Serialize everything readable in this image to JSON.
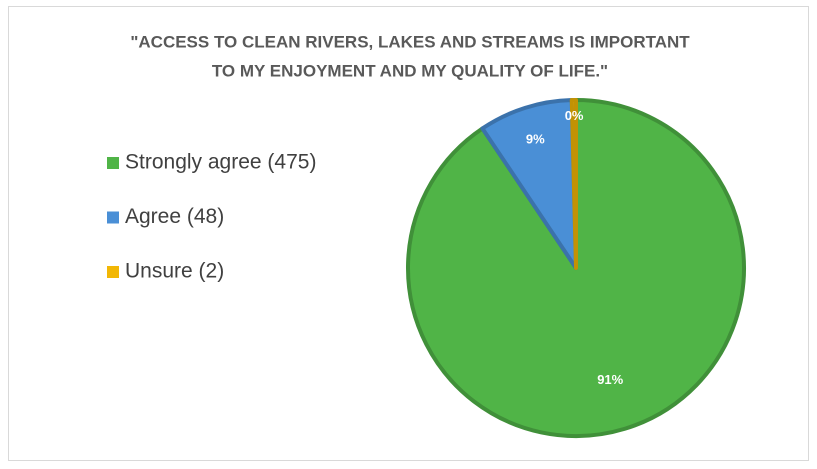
{
  "chart_data": {
    "type": "pie",
    "title": [
      "\"ACCESS TO CLEAN RIVERS, LAKES AND STREAMS IS IMPORTANT",
      "TO MY ENJOYMENT AND MY QUALITY OF LIFE.\""
    ],
    "categories": [
      "Strongly agree (475)",
      "Agree (48)",
      "Unsure (2)"
    ],
    "values": [
      90.6,
      9.0,
      0.4
    ],
    "value_labels": [
      "91%",
      "9%",
      "0%"
    ],
    "colors": [
      "#50b447",
      "#4a8fd6",
      "#f2b705"
    ],
    "legend": "left"
  }
}
